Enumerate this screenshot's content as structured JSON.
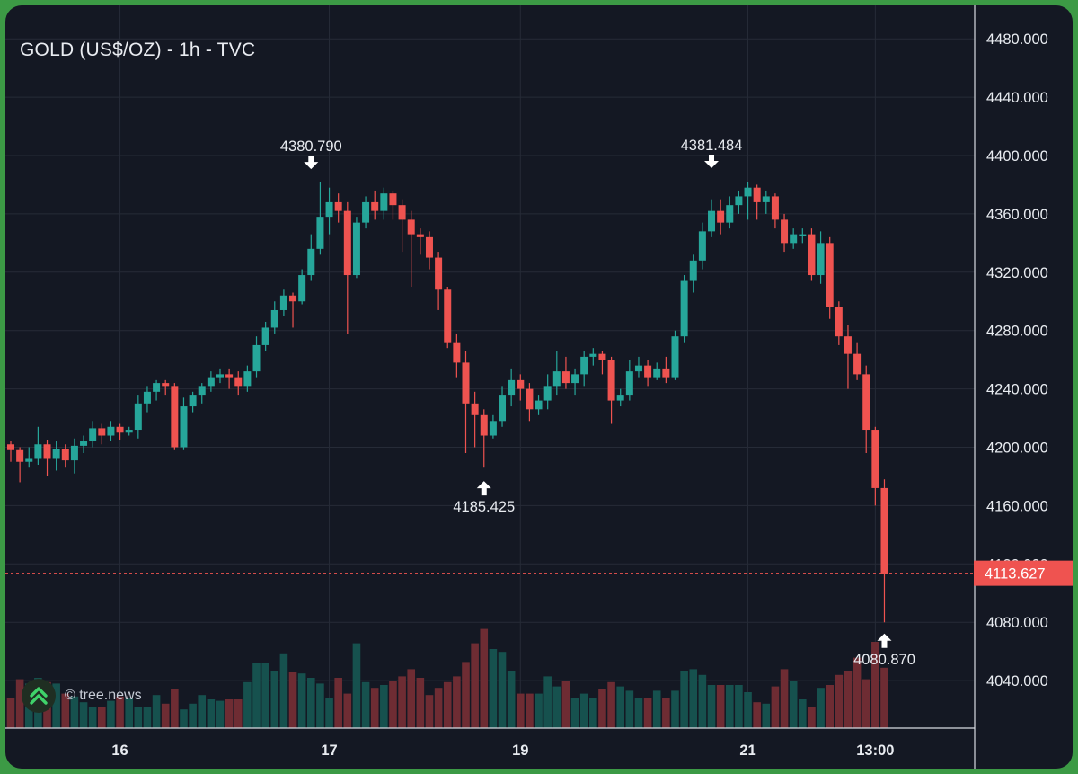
{
  "title": "GOLD (US$/OZ) - 1h - TVC",
  "watermark": "© tree.news",
  "colors": {
    "background": "#141823",
    "frame": "#3c9a45",
    "up": "#26a69a",
    "down": "#ef5350",
    "up_volume": "#16514e",
    "down_volume": "#6e2c33",
    "grid": "#262b37",
    "text": "#e9ecf1",
    "price_line": "#ef5350"
  },
  "chart_data": {
    "type": "candlestick",
    "title": "GOLD (US$/OZ) - 1h - TVC",
    "ylim": [
      4000,
      4500
    ],
    "y_ticks": [
      4040,
      4080,
      4120,
      4160,
      4200,
      4240,
      4280,
      4320,
      4360,
      4400,
      4440,
      4480
    ],
    "y_tick_labels": [
      "4040.000",
      "4080.000",
      "4120.000",
      "4160.000",
      "4200.000",
      "4240.000",
      "4280.000",
      "4320.000",
      "4360.000",
      "4400.000",
      "4440.000",
      "4480.000"
    ],
    "x_tick_labels": [
      "16",
      "17",
      "19",
      "21",
      "13:00"
    ],
    "x_tick_bar_index": [
      12,
      35,
      56,
      81,
      95
    ],
    "last_price": "4113.627",
    "last_price_value": 4113.627,
    "annotations": [
      {
        "label": "4380.790",
        "bar": 33,
        "value": 4380.79,
        "kind": "high"
      },
      {
        "label": "4185.425",
        "bar": 52,
        "value": 4185.425,
        "kind": "low"
      },
      {
        "label": "4381.484",
        "bar": 77,
        "value": 4381.484,
        "kind": "high"
      },
      {
        "label": "4080.870",
        "bar": 96,
        "value": 4080.87,
        "kind": "low"
      }
    ],
    "candles": [
      [
        4202,
        4198,
        4204,
        4190
      ],
      [
        4198,
        4190,
        4200,
        4176
      ],
      [
        4190,
        4192,
        4200,
        4186
      ],
      [
        4192,
        4202,
        4214,
        4188
      ],
      [
        4202,
        4192,
        4205,
        4180
      ],
      [
        4192,
        4199,
        4204,
        4184
      ],
      [
        4199,
        4191,
        4202,
        4186
      ],
      [
        4191,
        4201,
        4206,
        4182
      ],
      [
        4201,
        4204,
        4208,
        4196
      ],
      [
        4204,
        4213,
        4218,
        4200
      ],
      [
        4213,
        4208,
        4216,
        4202
      ],
      [
        4208,
        4214,
        4218,
        4204
      ],
      [
        4214,
        4210,
        4216,
        4205
      ],
      [
        4210,
        4212,
        4214,
        4208
      ],
      [
        4212,
        4230,
        4236,
        4206
      ],
      [
        4230,
        4238,
        4242,
        4224
      ],
      [
        4238,
        4244,
        4246,
        4232
      ],
      [
        4244,
        4242,
        4246,
        4236
      ],
      [
        4242,
        4200,
        4244,
        4198
      ],
      [
        4200,
        4228,
        4234,
        4198
      ],
      [
        4228,
        4236,
        4238,
        4224
      ],
      [
        4236,
        4242,
        4244,
        4230
      ],
      [
        4242,
        4248,
        4252,
        4238
      ],
      [
        4248,
        4250,
        4254,
        4244
      ],
      [
        4250,
        4248,
        4254,
        4240
      ],
      [
        4248,
        4242,
        4252,
        4236
      ],
      [
        4242,
        4252,
        4256,
        4238
      ],
      [
        4252,
        4270,
        4276,
        4248
      ],
      [
        4270,
        4282,
        4286,
        4266
      ],
      [
        4282,
        4294,
        4300,
        4278
      ],
      [
        4294,
        4304,
        4308,
        4290
      ],
      [
        4304,
        4300,
        4306,
        4282
      ],
      [
        4300,
        4318,
        4322,
        4298
      ],
      [
        4318,
        4336,
        4346,
        4314
      ],
      [
        4336,
        4358,
        4382,
        4332
      ],
      [
        4358,
        4368,
        4378,
        4346
      ],
      [
        4368,
        4362,
        4374,
        4354
      ],
      [
        4362,
        4318,
        4368,
        4278
      ],
      [
        4318,
        4354,
        4358,
        4316
      ],
      [
        4354,
        4368,
        4372,
        4350
      ],
      [
        4368,
        4362,
        4376,
        4356
      ],
      [
        4362,
        4374,
        4378,
        4356
      ],
      [
        4374,
        4366,
        4376,
        4356
      ],
      [
        4366,
        4356,
        4370,
        4334
      ],
      [
        4356,
        4346,
        4362,
        4310
      ],
      [
        4346,
        4344,
        4350,
        4332
      ],
      [
        4344,
        4330,
        4348,
        4322
      ],
      [
        4330,
        4308,
        4334,
        4294
      ],
      [
        4308,
        4272,
        4310,
        4268
      ],
      [
        4272,
        4258,
        4278,
        4248
      ],
      [
        4258,
        4230,
        4266,
        4196
      ],
      [
        4230,
        4222,
        4238,
        4200
      ],
      [
        4222,
        4208,
        4226,
        4186
      ],
      [
        4208,
        4218,
        4222,
        4206
      ],
      [
        4218,
        4236,
        4242,
        4214
      ],
      [
        4236,
        4246,
        4254,
        4228
      ],
      [
        4246,
        4240,
        4250,
        4232
      ],
      [
        4240,
        4226,
        4244,
        4218
      ],
      [
        4226,
        4232,
        4236,
        4222
      ],
      [
        4232,
        4242,
        4250,
        4226
      ],
      [
        4242,
        4252,
        4266,
        4236
      ],
      [
        4252,
        4244,
        4262,
        4240
      ],
      [
        4244,
        4250,
        4254,
        4236
      ],
      [
        4250,
        4262,
        4266,
        4242
      ],
      [
        4262,
        4264,
        4268,
        4256
      ],
      [
        4264,
        4260,
        4266,
        4250
      ],
      [
        4260,
        4232,
        4262,
        4216
      ],
      [
        4232,
        4236,
        4240,
        4228
      ],
      [
        4236,
        4252,
        4260,
        4232
      ],
      [
        4252,
        4256,
        4262,
        4248
      ],
      [
        4256,
        4248,
        4260,
        4242
      ],
      [
        4248,
        4254,
        4258,
        4246
      ],
      [
        4254,
        4248,
        4262,
        4244
      ],
      [
        4248,
        4276,
        4280,
        4246
      ],
      [
        4276,
        4314,
        4318,
        4272
      ],
      [
        4314,
        4328,
        4332,
        4306
      ],
      [
        4328,
        4348,
        4354,
        4322
      ],
      [
        4348,
        4362,
        4370,
        4344
      ],
      [
        4362,
        4354,
        4370,
        4346
      ],
      [
        4354,
        4366,
        4372,
        4350
      ],
      [
        4366,
        4372,
        4376,
        4360
      ],
      [
        4372,
        4378,
        4382,
        4356
      ],
      [
        4378,
        4368,
        4380,
        4356
      ],
      [
        4368,
        4372,
        4376,
        4360
      ],
      [
        4372,
        4356,
        4374,
        4350
      ],
      [
        4356,
        4340,
        4360,
        4334
      ],
      [
        4340,
        4346,
        4350,
        4336
      ],
      [
        4346,
        4346,
        4350,
        4340
      ],
      [
        4346,
        4318,
        4350,
        4314
      ],
      [
        4318,
        4340,
        4348,
        4312
      ],
      [
        4340,
        4296,
        4344,
        4288
      ],
      [
        4296,
        4276,
        4300,
        4270
      ],
      [
        4276,
        4264,
        4284,
        4240
      ],
      [
        4264,
        4250,
        4272,
        4246
      ],
      [
        4250,
        4212,
        4256,
        4196
      ],
      [
        4212,
        4172,
        4214,
        4160
      ],
      [
        4172,
        4113,
        4178,
        4080
      ]
    ],
    "volume_scale_max": 100,
    "volumes": [
      21,
      34,
      31,
      35,
      32,
      31,
      24,
      22,
      18,
      15,
      15,
      19,
      22,
      21,
      15,
      15,
      23,
      17,
      27,
      13,
      17,
      23,
      20,
      19,
      20,
      20,
      32,
      45,
      45,
      40,
      52,
      39,
      38,
      35,
      31,
      21,
      35,
      24,
      59,
      32,
      28,
      30,
      33,
      36,
      41,
      35,
      23,
      28,
      32,
      36,
      46,
      59,
      69,
      55,
      53,
      40,
      24,
      24,
      24,
      36,
      29,
      33,
      21,
      24,
      21,
      27,
      32,
      29,
      26,
      21,
      21,
      26,
      21,
      26,
      40,
      41,
      37,
      30,
      30,
      30,
      30,
      25,
      18,
      17,
      29,
      41,
      33,
      20,
      15,
      28,
      30,
      37,
      40,
      49,
      34,
      60,
      42
    ]
  }
}
